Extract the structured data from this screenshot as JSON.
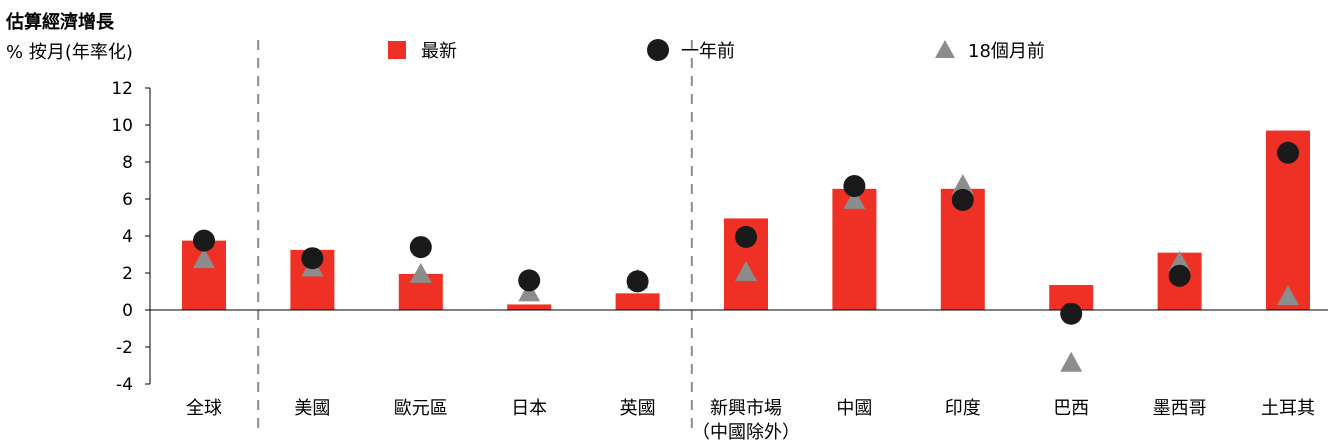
{
  "chart_data": {
    "type": "bar",
    "title": "估算經濟增長",
    "subtitle": "% 按月(年率化)",
    "categories": [
      "全球",
      "美國",
      "歐元區",
      "日本",
      "英國",
      "新興市場",
      "中國",
      "印度",
      "巴西",
      "墨西哥",
      "土耳其"
    ],
    "category_sublabels": [
      "",
      "",
      "",
      "",
      "",
      "（中國除外）",
      "",
      "",
      "",
      "",
      ""
    ],
    "series": [
      {
        "name": "最新",
        "marker": "bar",
        "color": "#ee3124",
        "values": [
          3.75,
          3.25,
          1.95,
          0.3,
          0.9,
          4.95,
          6.55,
          6.55,
          1.35,
          3.1,
          9.7
        ]
      },
      {
        "name": "一年前",
        "marker": "circle",
        "color": "#1a1a1a",
        "values": [
          3.75,
          2.8,
          3.4,
          1.6,
          1.55,
          3.95,
          6.7,
          5.95,
          -0.2,
          1.85,
          8.5
        ]
      },
      {
        "name": "18個月前",
        "marker": "triangle",
        "color": "#8c8c8c",
        "values": [
          2.75,
          2.3,
          1.95,
          0.95,
          1.65,
          2.05,
          5.95,
          6.75,
          -2.85,
          2.6,
          0.75
        ]
      }
    ],
    "ylim": [
      -4,
      12
    ],
    "yticks": [
      "12",
      "10",
      "8",
      "6",
      "4",
      "2",
      "0",
      "-2",
      "-4"
    ],
    "legend_placement": "top",
    "grid": false,
    "group_separators": "dashed lines after 全球 and after 英國"
  }
}
